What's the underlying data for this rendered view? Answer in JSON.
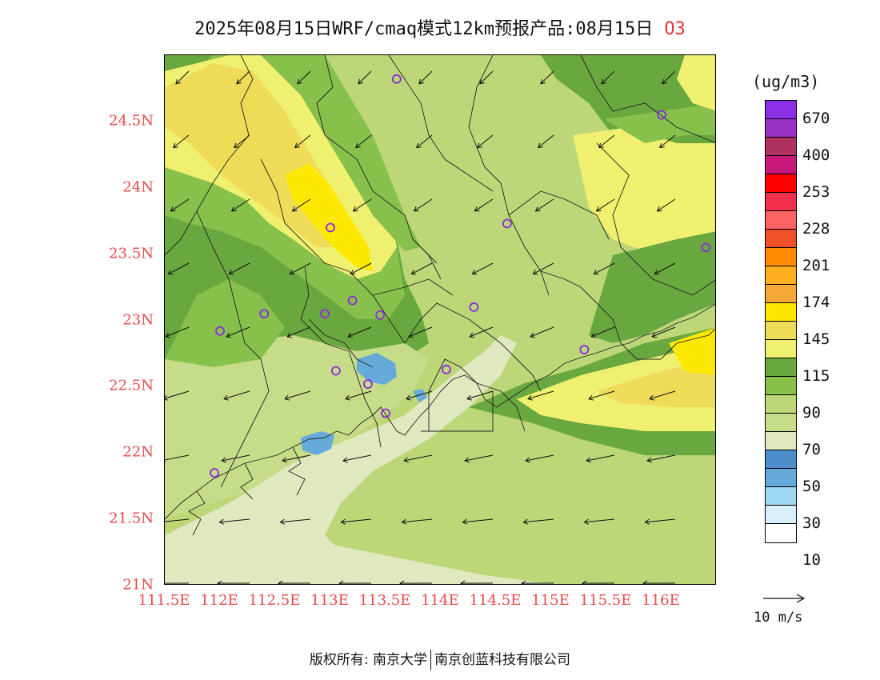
{
  "title": {
    "text": "2025年08月15日WRF/cmaq模式12km预报产品:08月15日",
    "species": "O3"
  },
  "map": {
    "lon_range": [
      111.5,
      116.5
    ],
    "lat_range": [
      21.0,
      25.0
    ],
    "colors": {
      "c30": "#65aad8",
      "c50": "#e0e8c0",
      "c60": "#c6dc88",
      "c70": "#bcd678",
      "c90": "#88c04c",
      "c100": "#68a83e",
      "c115": "#f0f070",
      "c130": "#eedc58",
      "c145": "#fce800"
    },
    "lat_ticks": [
      {
        "value": 24.5,
        "label": "24.5N"
      },
      {
        "value": 24.0,
        "label": "24N"
      },
      {
        "value": 23.5,
        "label": "23.5N"
      },
      {
        "value": 23.0,
        "label": "23N"
      },
      {
        "value": 22.5,
        "label": "22.5N"
      },
      {
        "value": 22.0,
        "label": "22N"
      },
      {
        "value": 21.5,
        "label": "21.5N"
      },
      {
        "value": 21.0,
        "label": "21N"
      }
    ],
    "lon_ticks": [
      {
        "value": 111.5,
        "label": "111.5E"
      },
      {
        "value": 112.0,
        "label": "112E"
      },
      {
        "value": 112.5,
        "label": "112.5E"
      },
      {
        "value": 113.0,
        "label": "113E"
      },
      {
        "value": 113.5,
        "label": "113.5E"
      },
      {
        "value": 114.0,
        "label": "114E"
      },
      {
        "value": 114.5,
        "label": "114.5E"
      },
      {
        "value": 115.0,
        "label": "115E"
      },
      {
        "value": 115.5,
        "label": "115.5E"
      },
      {
        "value": 116.0,
        "label": "116E"
      }
    ],
    "city_markers": [
      {
        "lon": 113.6,
        "lat": 24.82
      },
      {
        "lon": 116.0,
        "lat": 24.55
      },
      {
        "lon": 113.0,
        "lat": 23.7
      },
      {
        "lon": 114.6,
        "lat": 23.73
      },
      {
        "lon": 116.4,
        "lat": 23.55
      },
      {
        "lon": 112.4,
        "lat": 23.05
      },
      {
        "lon": 112.95,
        "lat": 23.05
      },
      {
        "lon": 113.2,
        "lat": 23.15
      },
      {
        "lon": 113.45,
        "lat": 23.04
      },
      {
        "lon": 114.3,
        "lat": 23.1
      },
      {
        "lon": 112.0,
        "lat": 22.92
      },
      {
        "lon": 115.3,
        "lat": 22.78
      },
      {
        "lon": 113.05,
        "lat": 22.62
      },
      {
        "lon": 113.34,
        "lat": 22.52
      },
      {
        "lon": 114.05,
        "lat": 22.63
      },
      {
        "lon": 113.5,
        "lat": 22.3
      },
      {
        "lon": 111.95,
        "lat": 21.85
      }
    ]
  },
  "colorbar": {
    "unit": "(ug/m3)",
    "colors": [
      "#8c30e8",
      "#9b30c8",
      "#b03060",
      "#c8187c",
      "#ff0000",
      "#f0304a",
      "#ff6464",
      "#f05028",
      "#ff8c00",
      "#ffb020",
      "#f4a838",
      "#fce800",
      "#eedc58",
      "#f0f070",
      "#68a83e",
      "#88c04c",
      "#bcd678",
      "#c6dc88",
      "#e0e8c0",
      "#4a8ecc",
      "#65aad8",
      "#a0d8f4",
      "#d8eef8",
      "#ffffff"
    ],
    "labels": [
      {
        "text": "670",
        "boundary": 1
      },
      {
        "text": "400",
        "boundary": 3
      },
      {
        "text": "253",
        "boundary": 5
      },
      {
        "text": "228",
        "boundary": 7
      },
      {
        "text": "201",
        "boundary": 9
      },
      {
        "text": "174",
        "boundary": 11
      },
      {
        "text": "145",
        "boundary": 13
      },
      {
        "text": "115",
        "boundary": 15
      },
      {
        "text": "90",
        "boundary": 17
      },
      {
        "text": "70",
        "boundary": 19
      },
      {
        "text": "50",
        "boundary": 21
      },
      {
        "text": "30",
        "boundary": 23
      },
      {
        "text": "10",
        "boundary": 25
      }
    ]
  },
  "wind_reference": {
    "label": "10 m/s"
  },
  "footer": {
    "copyright": "版权所有: 南京大学",
    "company": "南京创蓝科技有限公司"
  }
}
